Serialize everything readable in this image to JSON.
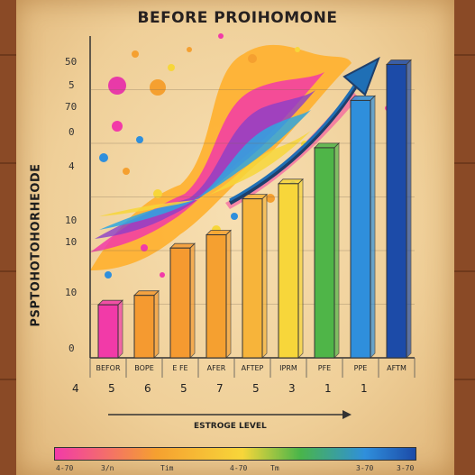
{
  "title": "BEFORE PROIHOMONE",
  "ylabel": "PSPTOHOTOHORHEODE",
  "y_scribbles": [
    "50",
    "5",
    "70",
    "0",
    "4",
    "10",
    "10",
    "10",
    "0"
  ],
  "x_footer_numbers": [
    "4",
    "5",
    "6",
    "5",
    "7",
    "5",
    "3",
    "1",
    "1"
  ],
  "bottom_axis_label": "ESTROGE LEVEL",
  "bottom_ticks": [
    "4-70",
    "3/n",
    "Tim",
    "4-70",
    "Tm",
    "3-70",
    "3-70"
  ],
  "colors": {
    "pink": "#f23aa8",
    "orange": "#f59a30",
    "yellow": "#f7d63a",
    "green": "#4fb548",
    "blue": "#2f8fdc",
    "navy": "#1c4ba8",
    "arrow": "#1f6fb5"
  },
  "chart_data": {
    "type": "bar",
    "title": "BEFORE PROIHOMONE",
    "ylabel": "PSPTOHOTOHORHEODE",
    "xlabel": "ESTROGE LEVEL",
    "categories": [
      "BEFOR",
      "BOPE",
      "E FE",
      "AFER",
      "AFTEP",
      "IPRM",
      "PFE",
      "PPE",
      "AFTM"
    ],
    "values": [
      2.8,
      3.3,
      5.8,
      6.5,
      8.4,
      9.2,
      11.1,
      13.6,
      15.5
    ],
    "bar_colors": [
      "#f23aa8",
      "#f59a30",
      "#f59a30",
      "#f5a030",
      "#f7b43a",
      "#f7d63a",
      "#4fb548",
      "#2f8fdc",
      "#1c4ba8"
    ],
    "ylim": [
      0,
      17
    ],
    "grid": true,
    "legend": "none"
  }
}
